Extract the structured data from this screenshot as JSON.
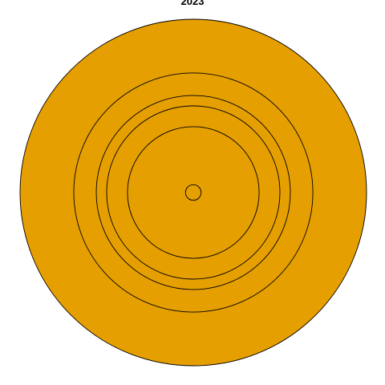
{
  "chart_data": {
    "type": "pie",
    "title": "2023",
    "fill_color": "#E69F00",
    "outline_color": "#000000",
    "grid": false,
    "legend": "none",
    "rings": [
      1.0,
      0.69,
      0.56,
      0.5,
      0.38,
      0.045
    ]
  }
}
